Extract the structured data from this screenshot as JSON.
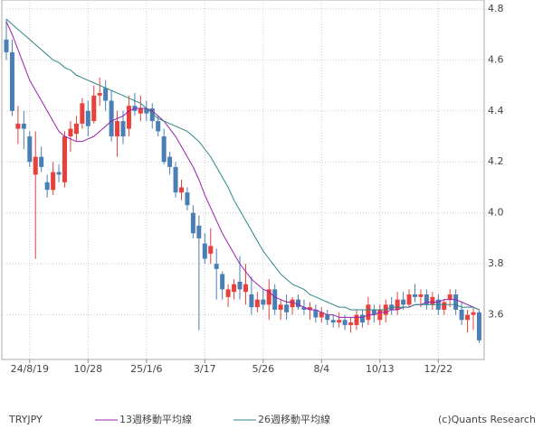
{
  "chart_data": {
    "type": "candlestick",
    "symbol": "TRYJPY",
    "credit": "(c)Quants Research",
    "categories": [
      null,
      null,
      null,
      null,
      "24/8/19",
      null,
      null,
      null,
      null,
      null,
      null,
      null,
      null,
      null,
      "10/28",
      null,
      null,
      null,
      null,
      null,
      null,
      null,
      null,
      null,
      "25/1/6",
      null,
      null,
      null,
      null,
      null,
      null,
      null,
      null,
      null,
      "3/17",
      null,
      null,
      null,
      null,
      null,
      null,
      null,
      null,
      null,
      "5/26",
      null,
      null,
      null,
      null,
      null,
      null,
      null,
      null,
      null,
      "8/4",
      null,
      null,
      null,
      null,
      null,
      null,
      null,
      null,
      null,
      "10/13",
      null,
      null,
      null,
      null,
      null,
      null,
      null,
      null,
      null,
      "12/22",
      null,
      null,
      null,
      null,
      null,
      null,
      null
    ],
    "open": [
      4.68,
      4.63,
      4.33,
      4.35,
      4.3,
      4.15,
      4.22,
      4.12,
      4.09,
      4.16,
      4.12,
      4.3,
      4.31,
      4.35,
      4.4,
      4.36,
      4.46,
      4.49,
      4.44,
      4.3,
      4.36,
      4.33,
      4.42,
      4.39,
      4.41,
      4.41,
      4.36,
      4.3,
      4.22,
      4.18,
      4.08,
      4.08,
      4.0,
      3.95,
      3.88,
      3.84,
      3.8,
      3.76,
      3.67,
      3.69,
      3.73,
      3.69,
      3.68,
      3.63,
      3.66,
      3.64,
      3.7,
      3.62,
      3.64,
      3.63,
      3.66,
      3.63,
      3.62,
      3.62,
      3.59,
      3.6,
      3.58,
      3.57,
      3.58,
      3.56,
      3.56,
      3.6,
      3.58,
      3.62,
      3.58,
      3.6,
      3.64,
      3.62,
      3.66,
      3.64,
      3.68,
      3.67,
      3.68,
      3.64,
      3.66,
      3.62,
      3.66,
      3.68,
      3.62,
      3.58,
      3.6,
      3.61
    ],
    "high": [
      4.76,
      4.68,
      4.42,
      4.4,
      4.32,
      4.32,
      4.26,
      4.15,
      4.2,
      4.19,
      4.32,
      4.36,
      4.38,
      4.45,
      4.44,
      4.5,
      4.53,
      4.52,
      4.48,
      4.4,
      4.4,
      4.46,
      4.47,
      4.46,
      4.44,
      4.43,
      4.38,
      4.33,
      4.24,
      4.2,
      4.13,
      4.1,
      4.03,
      3.99,
      3.92,
      3.94,
      3.86,
      3.77,
      3.72,
      3.74,
      3.83,
      3.8,
      3.75,
      3.69,
      3.7,
      3.74,
      3.72,
      3.66,
      3.68,
      3.67,
      3.68,
      3.66,
      3.65,
      3.64,
      3.63,
      3.62,
      3.6,
      3.61,
      3.6,
      3.59,
      3.62,
      3.62,
      3.67,
      3.64,
      3.64,
      3.66,
      3.67,
      3.69,
      3.69,
      3.7,
      3.72,
      3.7,
      3.7,
      3.69,
      3.68,
      3.66,
      3.7,
      3.7,
      3.65,
      3.62,
      3.63,
      3.62
    ],
    "low": [
      4.6,
      4.38,
      4.27,
      4.25,
      4.18,
      3.82,
      4.16,
      4.06,
      4.07,
      4.12,
      4.1,
      4.24,
      4.28,
      4.33,
      4.3,
      4.35,
      4.42,
      4.4,
      4.28,
      4.22,
      4.27,
      4.3,
      4.38,
      4.36,
      4.36,
      4.33,
      4.3,
      4.19,
      4.15,
      4.06,
      4.05,
      4.01,
      3.9,
      3.54,
      3.8,
      3.8,
      3.66,
      3.66,
      3.63,
      3.66,
      3.66,
      3.64,
      3.6,
      3.61,
      3.62,
      3.58,
      3.6,
      3.58,
      3.58,
      3.6,
      3.62,
      3.6,
      3.58,
      3.57,
      3.57,
      3.56,
      3.55,
      3.55,
      3.54,
      3.53,
      3.54,
      3.55,
      3.56,
      3.57,
      3.56,
      3.57,
      3.6,
      3.6,
      3.62,
      3.63,
      3.65,
      3.63,
      3.62,
      3.62,
      3.6,
      3.6,
      3.63,
      3.6,
      3.56,
      3.53,
      3.54,
      3.49
    ],
    "close": [
      4.63,
      4.4,
      4.35,
      4.33,
      4.2,
      4.22,
      4.18,
      4.09,
      4.16,
      4.15,
      4.3,
      4.33,
      4.35,
      4.43,
      4.34,
      4.46,
      4.47,
      4.44,
      4.3,
      4.36,
      4.3,
      4.42,
      4.4,
      4.41,
      4.39,
      4.36,
      4.32,
      4.2,
      4.18,
      4.08,
      4.1,
      4.03,
      3.92,
      3.9,
      3.82,
      3.87,
      3.78,
      3.7,
      3.7,
      3.72,
      3.7,
      3.72,
      3.63,
      3.66,
      3.64,
      3.7,
      3.62,
      3.64,
      3.61,
      3.66,
      3.63,
      3.62,
      3.63,
      3.59,
      3.61,
      3.58,
      3.57,
      3.58,
      3.56,
      3.57,
      3.6,
      3.57,
      3.64,
      3.6,
      3.62,
      3.64,
      3.62,
      3.66,
      3.64,
      3.68,
      3.67,
      3.68,
      3.64,
      3.67,
      3.62,
      3.65,
      3.68,
      3.62,
      3.58,
      3.6,
      3.61,
      3.5
    ],
    "up_color": "#e8413c",
    "down_color": "#4a7fb5",
    "series": [
      {
        "name": "13週移動平均線",
        "color": "#9a22b0",
        "values": [
          4.75,
          4.7,
          4.64,
          4.58,
          4.52,
          4.48,
          4.44,
          4.4,
          4.36,
          4.32,
          4.3,
          4.29,
          4.28,
          4.28,
          4.29,
          4.3,
          4.32,
          4.34,
          4.36,
          4.37,
          4.38,
          4.4,
          4.41,
          4.41,
          4.41,
          4.4,
          4.38,
          4.36,
          4.33,
          4.3,
          4.26,
          4.22,
          4.18,
          4.13,
          4.07,
          4.02,
          3.97,
          3.92,
          3.88,
          3.84,
          3.8,
          3.77,
          3.74,
          3.72,
          3.7,
          3.69,
          3.67,
          3.66,
          3.65,
          3.65,
          3.64,
          3.63,
          3.62,
          3.62,
          3.61,
          3.6,
          3.6,
          3.59,
          3.59,
          3.59,
          3.59,
          3.59,
          3.6,
          3.6,
          3.61,
          3.61,
          3.62,
          3.62,
          3.63,
          3.63,
          3.64,
          3.64,
          3.65,
          3.65,
          3.65,
          3.66,
          3.66,
          3.66,
          3.65,
          3.64,
          3.63,
          3.62
        ]
      },
      {
        "name": "26週移動平均線",
        "color": "#2e8585",
        "values": [
          4.76,
          4.74,
          4.72,
          4.7,
          4.68,
          4.66,
          4.64,
          4.62,
          4.6,
          4.59,
          4.57,
          4.56,
          4.54,
          4.53,
          4.52,
          4.51,
          4.5,
          4.49,
          4.48,
          4.47,
          4.46,
          4.45,
          4.44,
          4.43,
          4.41,
          4.39,
          4.37,
          4.36,
          4.35,
          4.34,
          4.33,
          4.32,
          4.3,
          4.28,
          4.25,
          4.22,
          4.18,
          4.14,
          4.1,
          4.05,
          4.01,
          3.97,
          3.93,
          3.89,
          3.85,
          3.82,
          3.79,
          3.76,
          3.74,
          3.72,
          3.71,
          3.7,
          3.68,
          3.67,
          3.66,
          3.65,
          3.64,
          3.63,
          3.63,
          3.62,
          3.62,
          3.62,
          3.62,
          3.62,
          3.62,
          3.62,
          3.63,
          3.63,
          3.63,
          3.63,
          3.64,
          3.64,
          3.64,
          3.64,
          3.64,
          3.64,
          3.64,
          3.64,
          3.63,
          3.63,
          3.63,
          3.62
        ]
      }
    ],
    "ylim": [
      3.425,
      4.835
    ],
    "yticks": [
      3.6,
      3.8,
      {
        "value": 4.0,
        "label": "4.0"
      },
      4.2,
      4.4,
      4.6,
      4.8
    ],
    "grid": true
  }
}
